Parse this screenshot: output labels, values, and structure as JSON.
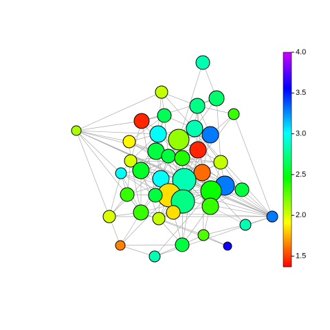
{
  "chart_data": {
    "type": "network",
    "colormap": "rainbow",
    "values": [
      2.85,
      2.05,
      2.7,
      2.75,
      2.35,
      2.65,
      1.45,
      2.1,
      2.85,
      3.3,
      3.0,
      2.15,
      1.9,
      1.45,
      2.6,
      2.6,
      2.4,
      2.05,
      2.0,
      2.55,
      1.6,
      3.0,
      3.0,
      2.85,
      3.3,
      2.45,
      2.6,
      2.35,
      1.85,
      2.6,
      2.75,
      2.35,
      2.35,
      1.85,
      2.0,
      2.05,
      3.3,
      2.85,
      2.3,
      2.6,
      1.65,
      3.6,
      2.85
    ],
    "clim": [
      1.37,
      4.0
    ],
    "cticks": [
      1.5,
      {
        "value": 2,
        "label": "2.0"
      },
      2.5,
      {
        "value": 3,
        "label": "3.0"
      },
      3.5,
      {
        "value": 4,
        "label": "4.0"
      }
    ]
  }
}
